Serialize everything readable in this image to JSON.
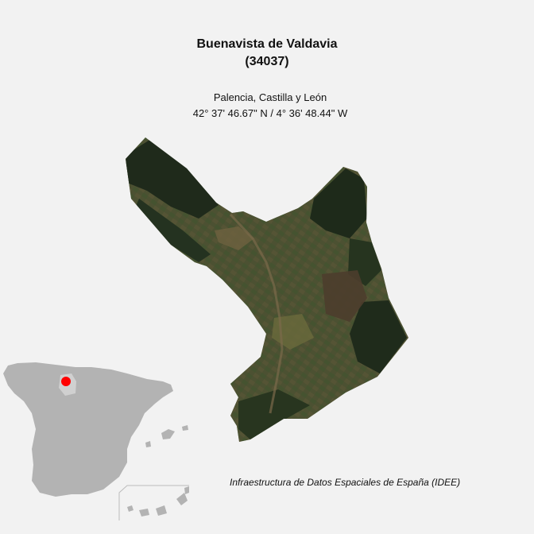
{
  "map": {
    "title": "Buenavista de Valdavia",
    "code": "(34037)",
    "region": "Palencia, Castilla y León",
    "coordinates": "42° 37' 46.67\" N / 4° 36' 48.44\" W",
    "credit": "Infraestructura de Datos Espaciales de España (IDEE)",
    "colors": {
      "background": "#f2f2f2",
      "inset_land": "#b3b3b3",
      "inset_province": "#d0d0d0",
      "locator_dot": "#ff0000",
      "satellite_dark": "#233020",
      "satellite_field": "#5e5a38"
    }
  }
}
